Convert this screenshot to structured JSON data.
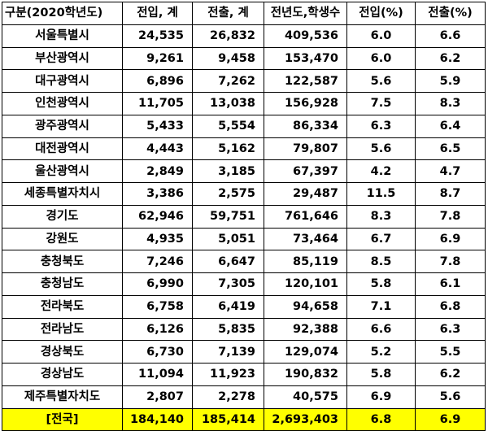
{
  "headers": [
    "구분(2020학년도)",
    "전입, 계",
    "전출, 계",
    "전년도,학생수",
    "전입(%)",
    "전출(%)"
  ],
  "rows": [
    {
      "region": "서울특별시",
      "in_count": "24,535",
      "out_count": "26,832",
      "students": "409,536",
      "in_pct": "6.0",
      "out_pct": "6.6"
    },
    {
      "region": "부산광역시",
      "in_count": "9,261",
      "out_count": "9,458",
      "students": "153,470",
      "in_pct": "6.0",
      "out_pct": "6.2"
    },
    {
      "region": "대구광역시",
      "in_count": "6,896",
      "out_count": "7,262",
      "students": "122,587",
      "in_pct": "5.6",
      "out_pct": "5.9"
    },
    {
      "region": "인천광역시",
      "in_count": "11,705",
      "out_count": "13,038",
      "students": "156,928",
      "in_pct": "7.5",
      "out_pct": "8.3"
    },
    {
      "region": "광주광역시",
      "in_count": "5,433",
      "out_count": "5,554",
      "students": "86,334",
      "in_pct": "6.3",
      "out_pct": "6.4"
    },
    {
      "region": "대전광역시",
      "in_count": "4,443",
      "out_count": "5,162",
      "students": "79,807",
      "in_pct": "5.6",
      "out_pct": "6.5"
    },
    {
      "region": "울산광역시",
      "in_count": "2,849",
      "out_count": "3,185",
      "students": "67,397",
      "in_pct": "4.2",
      "out_pct": "4.7"
    },
    {
      "region": "세종특별자치시",
      "in_count": "3,386",
      "out_count": "2,575",
      "students": "29,487",
      "in_pct": "11.5",
      "out_pct": "8.7"
    },
    {
      "region": "경기도",
      "in_count": "62,946",
      "out_count": "59,751",
      "students": "761,646",
      "in_pct": "8.3",
      "out_pct": "7.8"
    },
    {
      "region": "강원도",
      "in_count": "4,935",
      "out_count": "5,051",
      "students": "73,464",
      "in_pct": "6.7",
      "out_pct": "6.9"
    },
    {
      "region": "충청북도",
      "in_count": "7,246",
      "out_count": "6,647",
      "students": "85,119",
      "in_pct": "8.5",
      "out_pct": "7.8"
    },
    {
      "region": "충청남도",
      "in_count": "6,990",
      "out_count": "7,305",
      "students": "120,101",
      "in_pct": "5.8",
      "out_pct": "6.1"
    },
    {
      "region": "전라북도",
      "in_count": "6,758",
      "out_count": "6,419",
      "students": "94,658",
      "in_pct": "7.1",
      "out_pct": "6.8"
    },
    {
      "region": "전라남도",
      "in_count": "6,126",
      "out_count": "5,835",
      "students": "92,388",
      "in_pct": "6.6",
      "out_pct": "6.3"
    },
    {
      "region": "경상북도",
      "in_count": "6,730",
      "out_count": "7,139",
      "students": "129,074",
      "in_pct": "5.2",
      "out_pct": "5.5"
    },
    {
      "region": "경상남도",
      "in_count": "11,094",
      "out_count": "11,923",
      "students": "190,832",
      "in_pct": "5.8",
      "out_pct": "6.2"
    },
    {
      "region": "제주특별자치도",
      "in_count": "2,807",
      "out_count": "2,278",
      "students": "40,575",
      "in_pct": "6.9",
      "out_pct": "5.6"
    }
  ],
  "total": {
    "region": "[전국]",
    "in_count": "184,140",
    "out_count": "185,414",
    "students": "2,693,403",
    "in_pct": "6.8",
    "out_pct": "6.9"
  },
  "colors": {
    "total_row_bg": "#ffff00",
    "border": "#000000"
  }
}
